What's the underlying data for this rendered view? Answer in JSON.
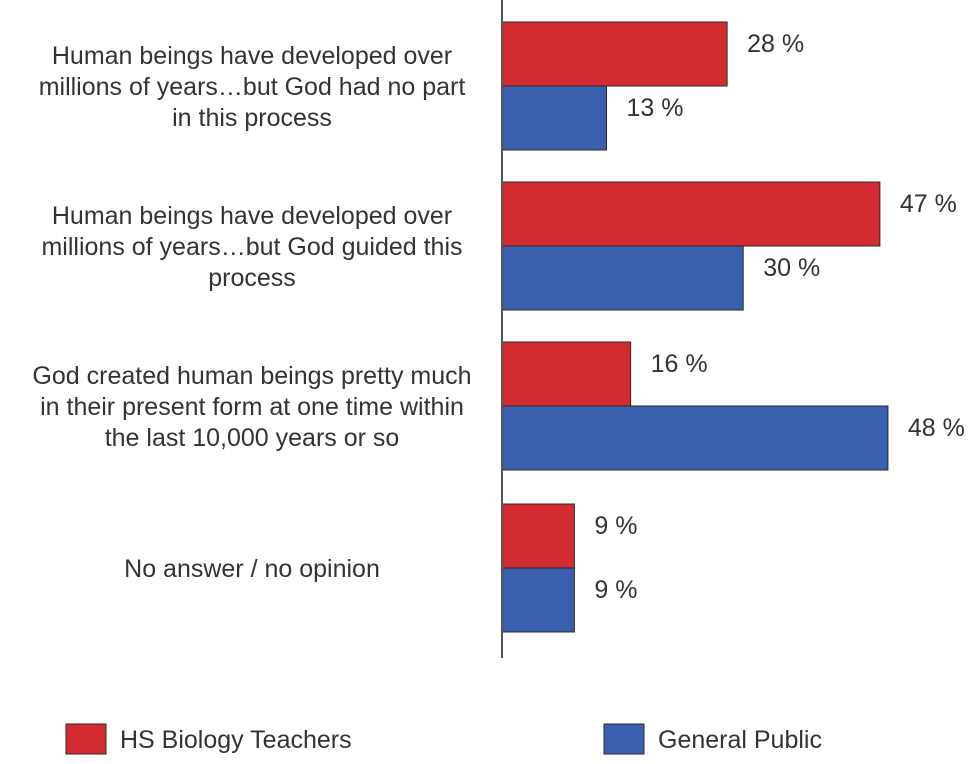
{
  "chart_data": {
    "type": "bar",
    "orientation": "horizontal",
    "categories": [
      [
        "Human beings have developed over",
        "millions of years…but God had no part",
        "in this process"
      ],
      [
        "Human beings have developed over",
        "millions of years…but God guided this",
        "process"
      ],
      [
        "God created human beings pretty much",
        "in their present form at one time within",
        "the last 10,000 years or so"
      ],
      [
        "No answer / no opinion"
      ]
    ],
    "series": [
      {
        "name": "HS Biology Teachers",
        "values": [
          28,
          47,
          16,
          9
        ],
        "color": "#d42a32"
      },
      {
        "name": "General Public",
        "values": [
          13,
          30,
          48,
          9
        ],
        "color": "#3a5fae"
      }
    ],
    "value_suffix": " %",
    "xlim": [
      0,
      60
    ],
    "grid": false,
    "legend": "bottom"
  }
}
